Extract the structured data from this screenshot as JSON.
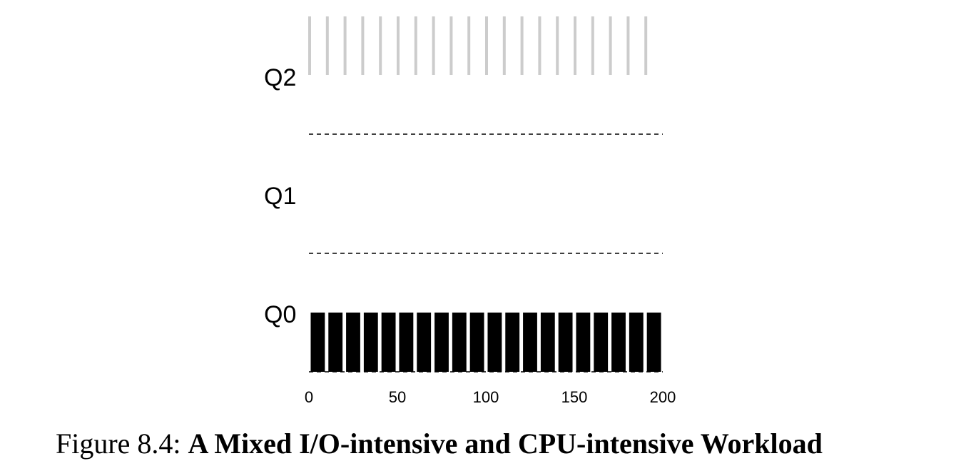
{
  "caption": {
    "prefix": "Figure 8.4:",
    "title": "A Mixed I/O-intensive and CPU-intensive Workload"
  },
  "chart_data": {
    "type": "bar",
    "xlim": [
      0,
      200
    ],
    "x_ticks": [
      "0",
      "50",
      "100",
      "150",
      "200"
    ],
    "x_tick_values": [
      0,
      50,
      100,
      150,
      200
    ],
    "queues": [
      "Q2",
      "Q1",
      "Q0"
    ],
    "grid": false,
    "series": [
      {
        "queue": "Q0",
        "color": "#000000",
        "segments": [
          [
            1,
            9
          ],
          [
            11,
            19
          ],
          [
            21,
            29
          ],
          [
            31,
            39
          ],
          [
            41,
            49
          ],
          [
            51,
            59
          ],
          [
            61,
            69
          ],
          [
            71,
            79
          ],
          [
            81,
            89
          ],
          [
            91,
            99
          ],
          [
            101,
            109
          ],
          [
            111,
            119
          ],
          [
            121,
            129
          ],
          [
            131,
            139
          ],
          [
            141,
            149
          ],
          [
            151,
            159
          ],
          [
            161,
            169
          ],
          [
            171,
            179
          ],
          [
            181,
            189
          ],
          [
            191,
            199
          ]
        ]
      },
      {
        "queue": "Q2",
        "color": "#cccccc",
        "segments": [
          [
            0,
            1
          ],
          [
            10,
            11
          ],
          [
            20,
            21
          ],
          [
            30,
            31
          ],
          [
            40,
            41
          ],
          [
            50,
            51
          ],
          [
            60,
            61
          ],
          [
            70,
            71
          ],
          [
            80,
            81
          ],
          [
            90,
            91
          ],
          [
            100,
            101
          ],
          [
            110,
            111
          ],
          [
            120,
            121
          ],
          [
            130,
            131
          ],
          [
            140,
            141
          ],
          [
            150,
            151
          ],
          [
            160,
            161
          ],
          [
            170,
            171
          ],
          [
            180,
            181
          ],
          [
            190,
            191
          ]
        ]
      }
    ]
  }
}
